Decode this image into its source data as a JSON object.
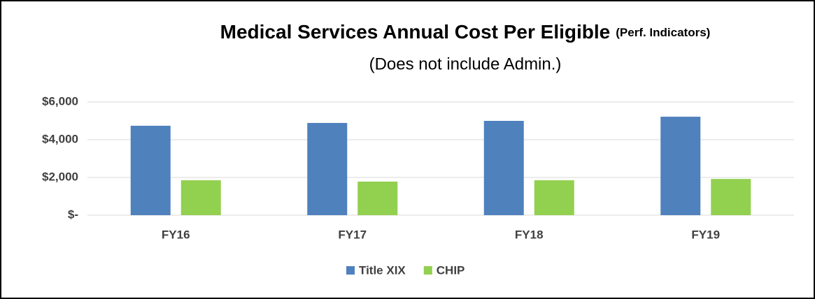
{
  "chart_data": {
    "type": "bar",
    "title": "Medical Services Annual Cost Per Eligible",
    "title_note": "(Perf. Indicators)",
    "subtitle": "(Does not include Admin.)",
    "categories": [
      "FY16",
      "FY17",
      "FY18",
      "FY19"
    ],
    "series": [
      {
        "name": "Title XIX",
        "color": "#4f81bd",
        "values": [
          4740,
          4890,
          5000,
          5220
        ]
      },
      {
        "name": "CHIP",
        "color": "#92d050",
        "values": [
          1850,
          1780,
          1850,
          1920
        ]
      }
    ],
    "ylim": [
      0,
      6000
    ],
    "yticks": [
      {
        "value": 0,
        "label": "$-"
      },
      {
        "value": 2000,
        "label": "$2,000"
      },
      {
        "value": 4000,
        "label": "$4,000"
      },
      {
        "value": 6000,
        "label": "$6,000"
      }
    ],
    "grid": true,
    "legend": "bottom"
  }
}
